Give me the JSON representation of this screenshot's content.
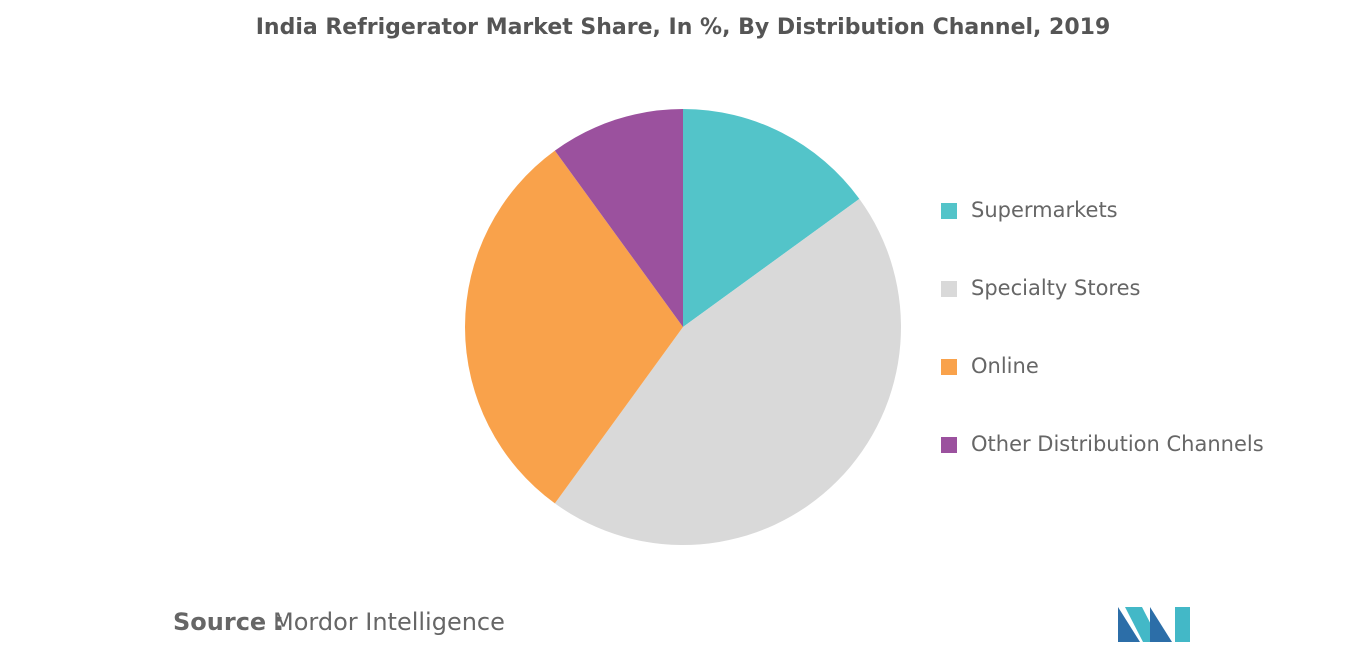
{
  "chart_data": {
    "type": "pie",
    "title": "India Refrigerator Market Share, In %, By Distribution Channel, 2019",
    "categories": [
      "Supermarkets",
      "Specialty Stores",
      "Online",
      "Other Distribution Channels"
    ],
    "values": [
      15,
      45,
      30,
      10
    ],
    "colors": [
      "#53c4c9",
      "#d9d9d9",
      "#f9a24b",
      "#9b519e"
    ],
    "legend": "right",
    "source_label": "Source :",
    "source": "Mordor Intelligence"
  }
}
